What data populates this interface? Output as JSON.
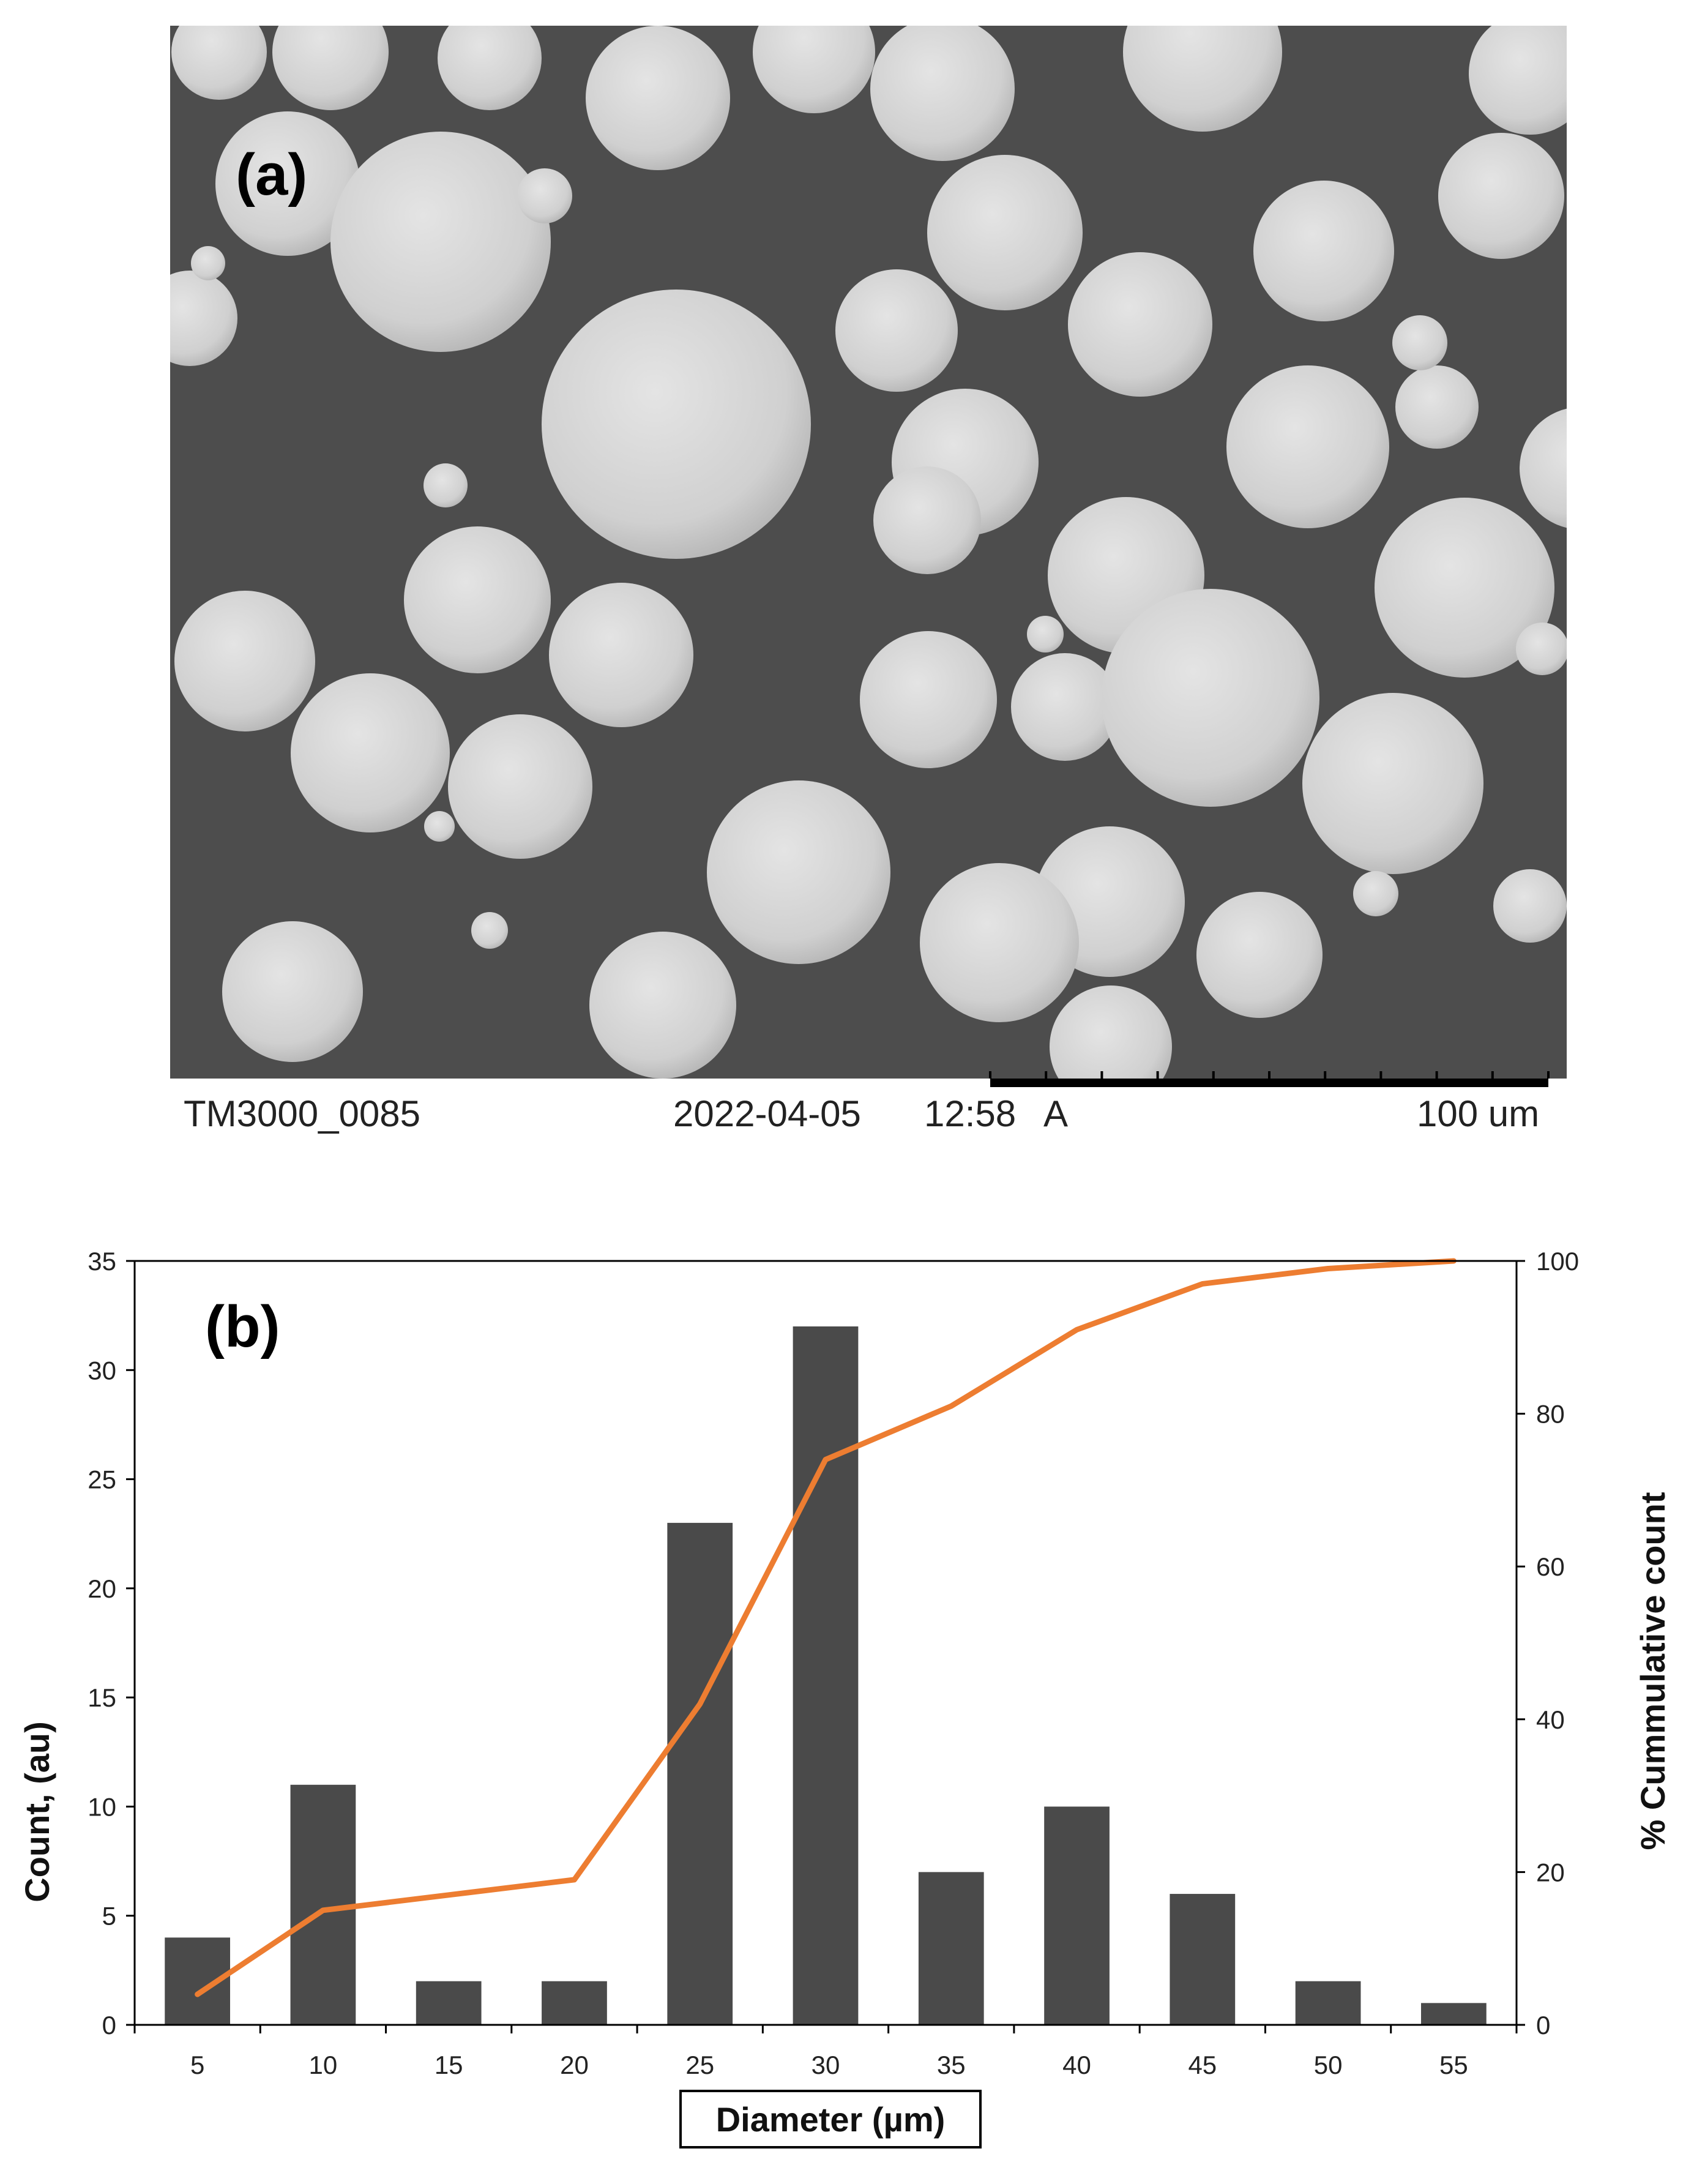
{
  "sem_image": {
    "panel_label": "(a)",
    "info_id": "TM3000_0085",
    "info_date": "2022-04-05",
    "info_time": "12:58",
    "info_mode": "A",
    "scale_bar_label": "100 um",
    "colors": {
      "background": "#4d4d4d",
      "particle": "#d3d3d3",
      "scale_bar": "#000000"
    }
  },
  "chart_data": {
    "type": "bar",
    "panel_label": "(b)",
    "categories": [
      "5",
      "10",
      "15",
      "20",
      "25",
      "30",
      "35",
      "40",
      "45",
      "50",
      "55"
    ],
    "series": [
      {
        "name": "Count",
        "axis": "left",
        "chart_type": "bar",
        "color": "#4a4a4a",
        "values": [
          4,
          11,
          2,
          2,
          23,
          32,
          7,
          10,
          6,
          2,
          1
        ]
      },
      {
        "name": "% Cummulative count",
        "axis": "right",
        "chart_type": "line",
        "color": "#ed7d31",
        "values": [
          4,
          15,
          17,
          19,
          42,
          74,
          81,
          91,
          97,
          99,
          100
        ]
      }
    ],
    "xlabel": "Diameter (µm)",
    "ylabel": "Count, (au)",
    "ylabel_right": "% Cummulative count",
    "ylim": [
      0,
      35
    ],
    "ylim_right": [
      0,
      100
    ],
    "yticks": [
      "0",
      "5",
      "10",
      "15",
      "20",
      "25",
      "30",
      "35"
    ],
    "yticks_right": [
      "0",
      "20",
      "40",
      "60",
      "80",
      "100"
    ],
    "grid": false,
    "legend": "none"
  }
}
